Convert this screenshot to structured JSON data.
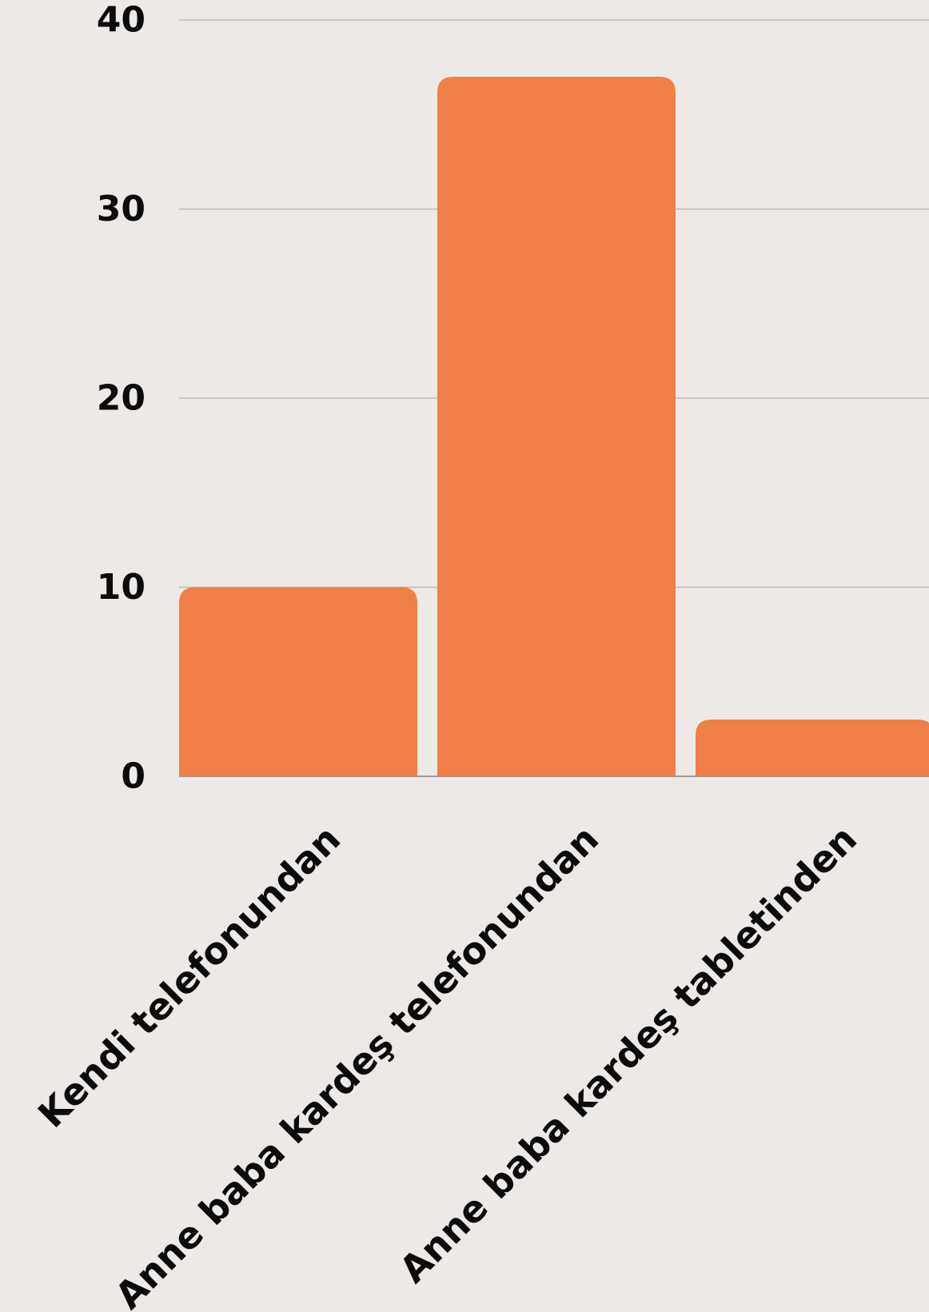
{
  "chart_data": {
    "type": "bar",
    "categories": [
      "Kendi telefonundan",
      "Anne baba kardeş telefonundan",
      "Anne baba kardeş tabletinden"
    ],
    "values": [
      10,
      37,
      3
    ],
    "ylim": [
      0,
      40
    ],
    "yticks": [
      0,
      10,
      20,
      30,
      40
    ],
    "grid": true,
    "bar_color": "#f07f48",
    "grid_color": "#bdbab8",
    "background_color": "#ede9e7",
    "text_color": "#0b0b0b"
  }
}
